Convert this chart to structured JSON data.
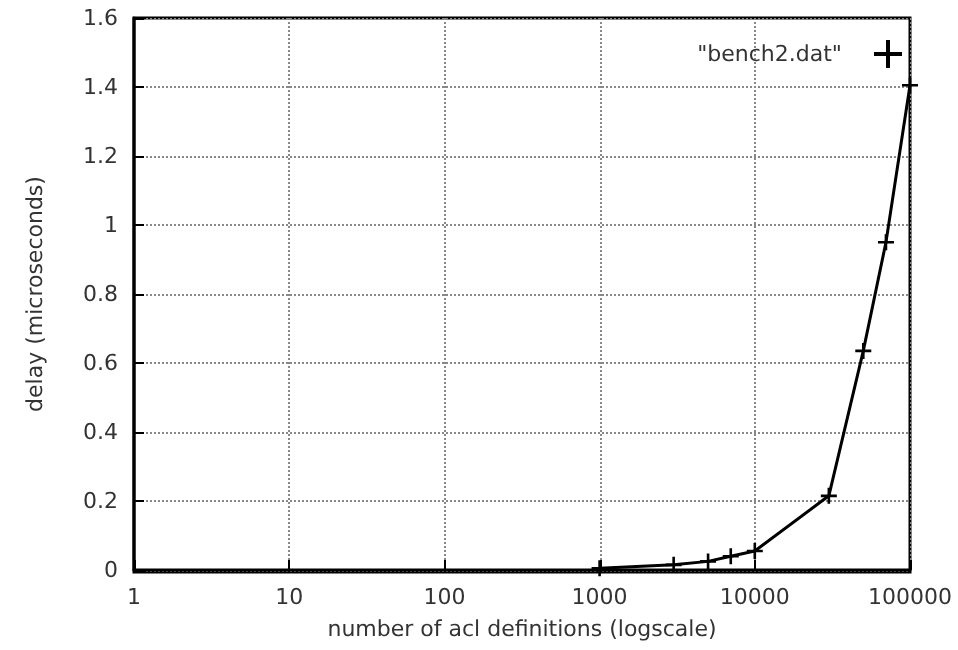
{
  "chart_data": {
    "type": "line",
    "xlabel": "number of acl definitions (logscale)",
    "ylabel": "delay (microseconds)",
    "log": "x",
    "grid": true,
    "legend": "top right",
    "marker": "cross",
    "line_style": "solid",
    "xlim": [
      1,
      100000
    ],
    "xticks": [
      1,
      10,
      100,
      1000,
      10000,
      100000
    ],
    "ylim": [
      0,
      1.6
    ],
    "yticks": [
      0,
      0.2,
      0.4,
      0.6,
      0.8,
      1,
      1.2,
      1.4,
      1.6
    ],
    "series": [
      {
        "name": "\"bench2.dat\"",
        "color": "#000000",
        "x": [
          1000,
          3000,
          5000,
          7000,
          10000,
          30000,
          50000,
          70000,
          100000
        ],
        "values": [
          0.005,
          0.015,
          0.025,
          0.04,
          0.055,
          0.215,
          0.635,
          0.95,
          1.405
        ]
      }
    ]
  }
}
